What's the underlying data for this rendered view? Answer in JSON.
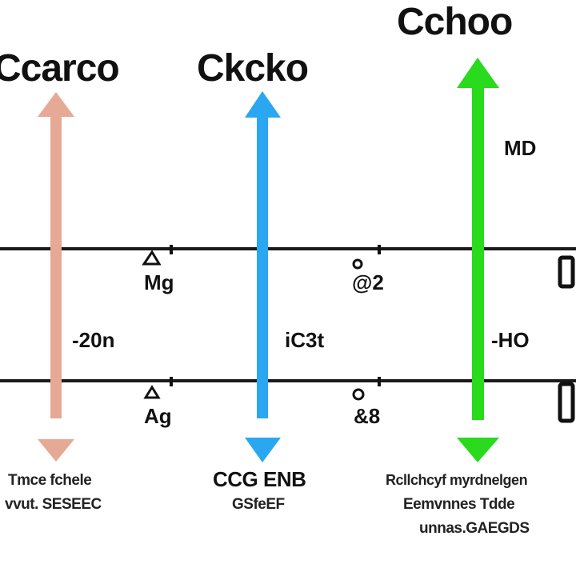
{
  "titles": {
    "col1": "Ccarco",
    "col2": "Ckcko",
    "col3": "Cchoo"
  },
  "labels": {
    "top_right": "MD",
    "row1_left": "Mg",
    "row1_mid": "@2",
    "row2_left": "Ag",
    "row2_mid": "&8",
    "between_left": "-20n",
    "between_mid": "iC3t",
    "between_right": "-HO"
  },
  "captions": {
    "left_1": "Tmce fchele",
    "left_2": "vvut. SESEEC",
    "mid_1": "CCG ENB",
    "mid_2": "GSfeEF",
    "right_1": "Rcllchcyf myrdnelgen",
    "right_2": "Eemvnnes Tdde",
    "right_3": "unnas.GAEGDS"
  },
  "colors": {
    "arrow_left": "#E5A995",
    "arrow_mid": "#2AA7F0",
    "arrow_right": "#29DA1D",
    "line": "#1A1A1A"
  }
}
